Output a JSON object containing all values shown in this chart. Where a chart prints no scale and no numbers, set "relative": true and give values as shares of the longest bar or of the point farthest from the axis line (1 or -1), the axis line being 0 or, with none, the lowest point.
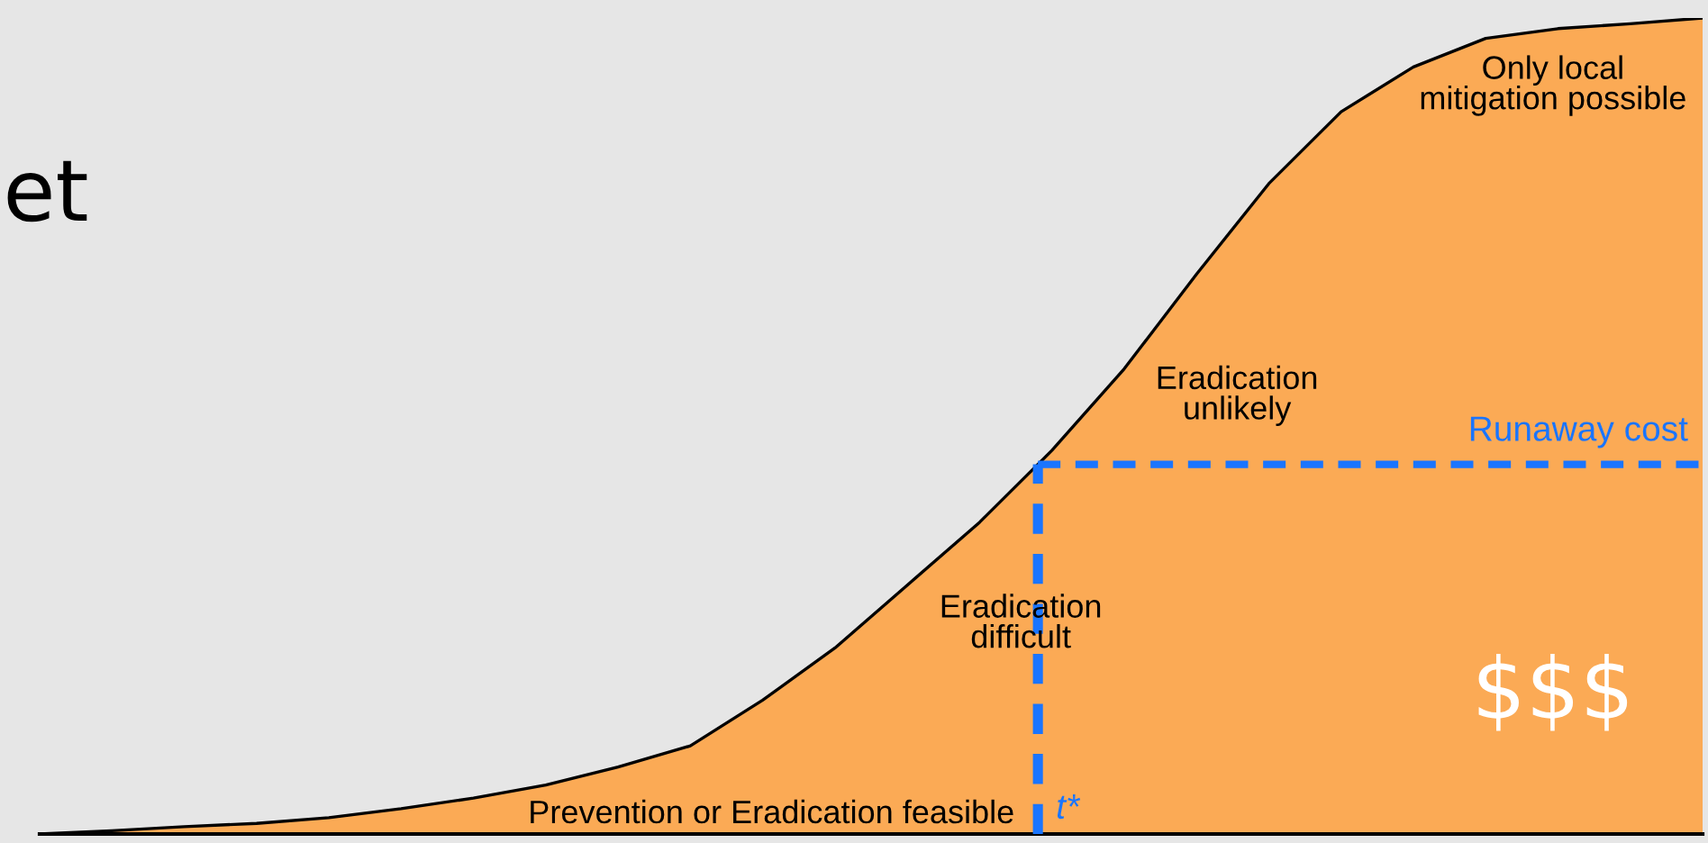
{
  "chart_data": {
    "type": "area",
    "relative": true,
    "categories": [
      null,
      null,
      null,
      null,
      null,
      null,
      null,
      null,
      null,
      null,
      null,
      null,
      null,
      null,
      null,
      null,
      null,
      null,
      null,
      null,
      null,
      null,
      null,
      null
    ],
    "series": [
      {
        "color": "#fbaa55",
        "values": [
          0,
          0.004,
          0.009,
          0.013,
          0.02,
          0.031,
          0.044,
          0.06,
          0.082,
          0.108,
          0.164,
          0.228,
          0.305,
          0.382,
          0.47,
          0.57,
          0.686,
          0.797,
          0.885,
          0.94,
          0.975,
          0.987,
          0.993,
          1.0
        ]
      }
    ],
    "ref_lines": [
      {
        "axis": "y",
        "value": 0.453,
        "label": "Runaway cost",
        "color": "#1a75ff",
        "line_style": "dashed"
      }
    ],
    "annotations": [
      "et",
      "Prevention or Eradication feasible",
      "Eradication\ndifficult",
      "Eradication\nunlikely",
      "Only local\nmitigation possible",
      "$$$",
      "t*"
    ]
  }
}
